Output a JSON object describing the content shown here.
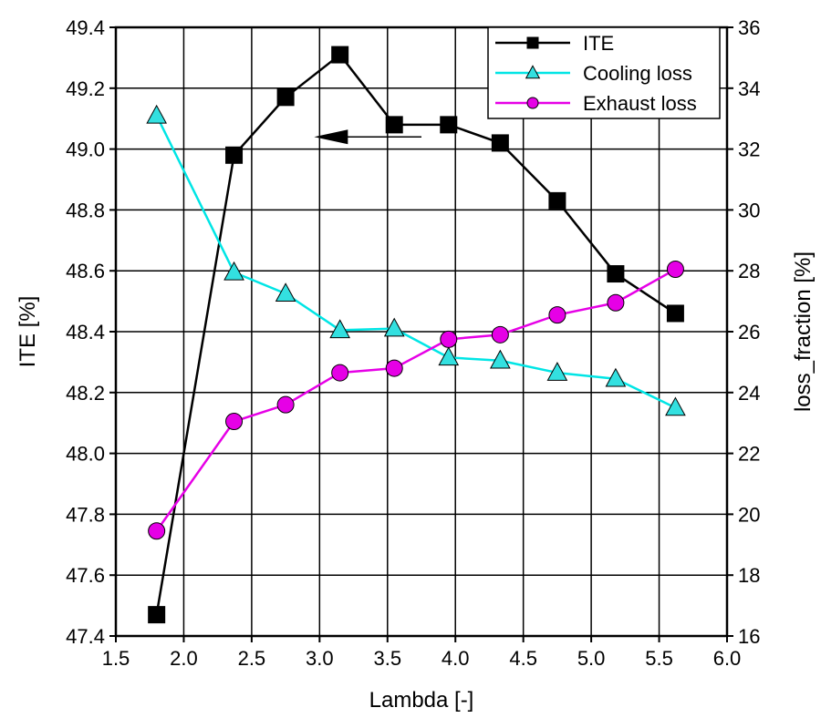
{
  "chart_data": {
    "type": "line",
    "title": "",
    "xlabel": "Lambda [-]",
    "ylabel_left": "ITE [%]",
    "ylabel_right": "loss_fraction [%]",
    "xlim": [
      1.5,
      6.0
    ],
    "ylim_left": [
      47.4,
      49.4
    ],
    "ylim_right": [
      16,
      36
    ],
    "x_ticks": [
      "1.5",
      "2.0",
      "2.5",
      "3.0",
      "3.5",
      "4.0",
      "4.5",
      "5.0",
      "5.5",
      "6.0"
    ],
    "y_left_ticks": [
      "47.4",
      "47.6",
      "47.8",
      "48.0",
      "48.2",
      "48.4",
      "48.6",
      "48.8",
      "49.0",
      "49.2",
      "49.4"
    ],
    "y_right_ticks": [
      "16",
      "18",
      "20",
      "22",
      "24",
      "26",
      "28",
      "30",
      "32",
      "34",
      "36"
    ],
    "grid": true,
    "legend_position": "top-right",
    "x": [
      1.8,
      2.37,
      2.75,
      3.15,
      3.55,
      3.95,
      4.33,
      4.75,
      5.18,
      5.62
    ],
    "series": [
      {
        "name": "ITE",
        "axis": "left",
        "marker": "square",
        "color": "#000000",
        "marker_fill": "#000000",
        "values": [
          47.47,
          48.98,
          49.17,
          49.31,
          49.08,
          49.08,
          49.02,
          48.83,
          48.59,
          48.46
        ]
      },
      {
        "name": "Cooling loss",
        "axis": "right",
        "marker": "triangle",
        "color": "#00e5e5",
        "marker_fill": "#33e0e0",
        "values": [
          33.1,
          27.95,
          27.25,
          26.05,
          26.1,
          25.15,
          25.05,
          24.65,
          24.45,
          23.5
        ]
      },
      {
        "name": "Exhaust loss",
        "axis": "right",
        "marker": "circle",
        "color": "#e600e6",
        "marker_fill": "#e600e6",
        "values": [
          19.45,
          23.05,
          23.6,
          24.65,
          24.8,
          25.75,
          25.9,
          26.55,
          26.95,
          28.05
        ]
      }
    ],
    "annotations": [
      {
        "type": "arrow",
        "direction": "left",
        "meaning": "ITE series uses left axis",
        "from": [
          3.75,
          49.04
        ],
        "to": [
          2.98,
          49.04
        ]
      }
    ]
  }
}
